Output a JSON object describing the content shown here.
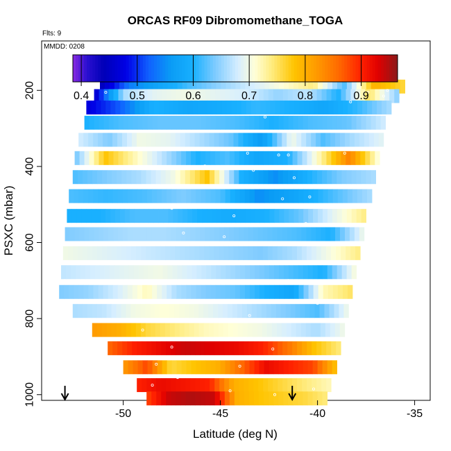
{
  "chart_data": {
    "type": "heatmap",
    "title": "ORCAS RF09 Dibromomethane_TOGA",
    "flights_label": "Flts: 9",
    "date_label": "MMDD: 0208",
    "xlabel": "Latitude (deg N)",
    "ylabel": "PSXC (mbar)",
    "xlim": [
      -54.2,
      -34.2
    ],
    "ylim": [
      1015,
      70
    ],
    "xticks": [
      -50,
      -45,
      -40,
      -35
    ],
    "xtick_labels": [
      "-50",
      "-45",
      "-40",
      "-35"
    ],
    "yticks": [
      200,
      400,
      600,
      800,
      1000
    ],
    "ytick_labels": [
      "200",
      "400",
      "600",
      "800",
      "1000"
    ],
    "colorbar": {
      "range": [
        0.385,
        0.965
      ],
      "ticks": [
        0.4,
        0.5,
        0.6,
        0.7,
        0.8,
        0.9
      ],
      "tick_labels": [
        "0.4",
        "0.5",
        "0.6",
        "0.7",
        "0.8",
        "0.9"
      ],
      "stops": [
        [
          0.385,
          "#8a2be2"
        ],
        [
          0.41,
          "#2a0fd0"
        ],
        [
          0.44,
          "#0000b8"
        ],
        [
          0.48,
          "#0000e6"
        ],
        [
          0.52,
          "#1060ff"
        ],
        [
          0.56,
          "#0a9cf5"
        ],
        [
          0.6,
          "#19b0ff"
        ],
        [
          0.64,
          "#80ccff"
        ],
        [
          0.68,
          "#d6eeff"
        ],
        [
          0.71,
          "#ffffd8"
        ],
        [
          0.74,
          "#ffec80"
        ],
        [
          0.78,
          "#ffc400"
        ],
        [
          0.82,
          "#ff9a00"
        ],
        [
          0.86,
          "#ff6a00"
        ],
        [
          0.9,
          "#ff2000"
        ],
        [
          0.93,
          "#e00000"
        ],
        [
          0.965,
          "#8b1a1a"
        ]
      ]
    },
    "rows": [
      {
        "p": 190,
        "xs": -51.2,
        "xe": -35.5,
        "vals": [
          0.44,
          0.54,
          0.58,
          0.62,
          0.65,
          0.68,
          0.71,
          0.74,
          0.62,
          0.8,
          0.76
        ]
      },
      {
        "p": 215,
        "xs": -51.5,
        "xe": -35.8,
        "vals": [
          0.45,
          0.66,
          0.69,
          0.7,
          0.69,
          0.68,
          0.65,
          0.67,
          0.6,
          0.75,
          0.64
        ]
      },
      {
        "p": 245,
        "xs": -51.9,
        "xe": -36.2,
        "vals": [
          0.47,
          0.52,
          0.6,
          0.58,
          0.59,
          0.61,
          0.6,
          0.58,
          0.61,
          0.66
        ]
      },
      {
        "p": 285,
        "xs": -52.0,
        "xe": -36.5,
        "vals": [
          0.6,
          0.62,
          0.63,
          0.63,
          0.62,
          0.6,
          0.62,
          0.63,
          0.68
        ]
      },
      {
        "p": 330,
        "xs": -52.3,
        "xe": -36.6,
        "vals": [
          0.68,
          0.64,
          0.7,
          0.69,
          0.66,
          0.63,
          0.56,
          0.7,
          0.62,
          0.66,
          0.69
        ]
      },
      {
        "p": 378,
        "xs": -52.5,
        "xe": -36.8,
        "vals": [
          0.63,
          0.78,
          0.72,
          0.66,
          0.6,
          0.62,
          0.58,
          0.6,
          0.72,
          0.84,
          0.7
        ]
      },
      {
        "p": 428,
        "xs": -52.6,
        "xe": -37.0,
        "vals": [
          0.62,
          0.64,
          0.66,
          0.7,
          0.78,
          0.6,
          0.55,
          0.6,
          0.64,
          0.66
        ]
      },
      {
        "p": 478,
        "xs": -52.8,
        "xe": -37.2,
        "vals": [
          0.62,
          0.61,
          0.62,
          0.64,
          0.62,
          0.55,
          0.58,
          0.62,
          0.66
        ]
      },
      {
        "p": 530,
        "xs": -52.9,
        "xe": -37.5,
        "vals": [
          0.6,
          0.6,
          0.62,
          0.62,
          0.6,
          0.59,
          0.6,
          0.63,
          0.69,
          0.74
        ]
      },
      {
        "p": 578,
        "xs": -53.0,
        "xe": -37.6,
        "vals": [
          0.64,
          0.65,
          0.66,
          0.66,
          0.65,
          0.64,
          0.63,
          0.62,
          0.6,
          0.7
        ]
      },
      {
        "p": 628,
        "xs": -53.1,
        "xe": -37.8,
        "vals": [
          0.7,
          0.69,
          0.68,
          0.67,
          0.66,
          0.65,
          0.64,
          0.66,
          0.7,
          0.74
        ]
      },
      {
        "p": 678,
        "xs": -53.2,
        "xe": -38.0,
        "vals": [
          0.67,
          0.68,
          0.69,
          0.7,
          0.68,
          0.66,
          0.64,
          0.62,
          0.6,
          0.71
        ]
      },
      {
        "p": 730,
        "xs": -53.3,
        "xe": -38.2,
        "vals": [
          0.64,
          0.65,
          0.68,
          0.72,
          0.66,
          0.64,
          0.63,
          0.6,
          0.58,
          0.72,
          0.75
        ]
      },
      {
        "p": 780,
        "xs": -52.6,
        "xe": -38.4,
        "vals": [
          0.66,
          0.67,
          0.7,
          0.71,
          0.7,
          0.68,
          0.66,
          0.64,
          0.62,
          0.7
        ]
      },
      {
        "p": 830,
        "xs": -51.6,
        "xe": -38.6,
        "vals": [
          0.82,
          0.8,
          0.76,
          0.74,
          0.72,
          0.71,
          0.7,
          0.68,
          0.66,
          0.7
        ]
      },
      {
        "p": 878,
        "xs": -50.8,
        "xe": -38.8,
        "vals": [
          0.86,
          0.9,
          0.92,
          0.94,
          0.93,
          0.92,
          0.9,
          0.85,
          0.78,
          0.74
        ]
      },
      {
        "p": 928,
        "xs": -50.0,
        "xe": -39.0,
        "vals": [
          0.82,
          0.88,
          0.76,
          0.78,
          0.8,
          0.86,
          0.92,
          0.9,
          0.88,
          0.78
        ]
      },
      {
        "p": 975,
        "xs": -49.3,
        "xe": -39.3,
        "vals": [
          0.9,
          0.92,
          0.91,
          0.9,
          0.8,
          0.78,
          0.76,
          0.74,
          0.72
        ]
      },
      {
        "p": 1010,
        "xs": -48.8,
        "xe": -39.5,
        "vals": [
          0.88,
          0.94,
          0.95,
          0.94,
          0.8,
          0.78,
          0.77,
          0.76,
          0.74
        ]
      }
    ],
    "markers": [
      {
        "lat": -50.9,
        "p": 205
      },
      {
        "lat": -37.4,
        "p": 205
      },
      {
        "lat": -36.4,
        "p": 200
      },
      {
        "lat": -36.6,
        "p": 215
      },
      {
        "lat": -38.3,
        "p": 230
      },
      {
        "lat": -36.1,
        "p": 240
      },
      {
        "lat": -42.7,
        "p": 270
      },
      {
        "lat": -43.6,
        "p": 365
      },
      {
        "lat": -42.0,
        "p": 370
      },
      {
        "lat": -38.6,
        "p": 365
      },
      {
        "lat": -41.5,
        "p": 370
      },
      {
        "lat": -49.5,
        "p": 402
      },
      {
        "lat": -45.8,
        "p": 399
      },
      {
        "lat": -43.3,
        "p": 410
      },
      {
        "lat": -41.2,
        "p": 430
      },
      {
        "lat": -40.4,
        "p": 480
      },
      {
        "lat": -41.8,
        "p": 485
      },
      {
        "lat": -47.5,
        "p": 510
      },
      {
        "lat": -44.3,
        "p": 530
      },
      {
        "lat": -40.6,
        "p": 550
      },
      {
        "lat": -37.8,
        "p": 553
      },
      {
        "lat": -46.9,
        "p": 575
      },
      {
        "lat": -44.8,
        "p": 585
      },
      {
        "lat": -40.5,
        "p": 650
      },
      {
        "lat": -53.0,
        "p": 700
      },
      {
        "lat": -41.5,
        "p": 700
      },
      {
        "lat": -38.0,
        "p": 715
      },
      {
        "lat": -40.0,
        "p": 760
      },
      {
        "lat": -43.5,
        "p": 792
      },
      {
        "lat": -49.0,
        "p": 830
      },
      {
        "lat": -47.5,
        "p": 875
      },
      {
        "lat": -42.3,
        "p": 880
      },
      {
        "lat": -48.3,
        "p": 920
      },
      {
        "lat": -44.0,
        "p": 925
      },
      {
        "lat": -38.8,
        "p": 918
      },
      {
        "lat": -47.2,
        "p": 955
      },
      {
        "lat": -48.5,
        "p": 975
      },
      {
        "lat": -44.5,
        "p": 990
      },
      {
        "lat": -42.2,
        "p": 1000
      },
      {
        "lat": -40.2,
        "p": 985
      }
    ],
    "arrows": [
      {
        "lat": -53.0
      },
      {
        "lat": -41.3
      }
    ]
  }
}
